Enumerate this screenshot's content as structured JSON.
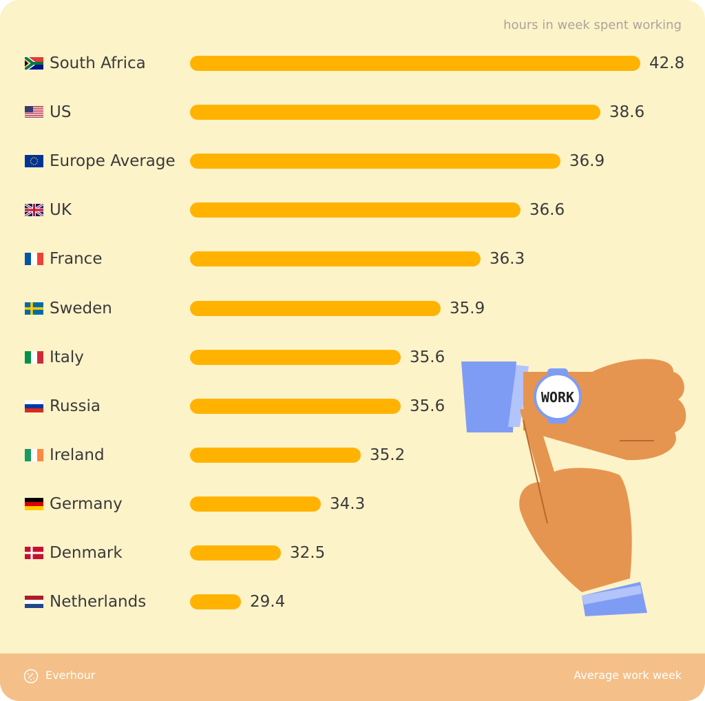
{
  "chart_data": {
    "type": "bar",
    "orientation": "horizontal",
    "unit_label": "hours in week spent working",
    "categories": [
      "South Africa",
      "US",
      "Europe Average",
      "UK",
      "France",
      "Sweden",
      "Italy",
      "Russia",
      "Ireland",
      "Germany",
      "Denmark",
      "Netherlands"
    ],
    "flags": [
      "za",
      "us",
      "eu",
      "gb",
      "fr",
      "se",
      "it",
      "ru",
      "ie",
      "de",
      "dk",
      "nl"
    ],
    "values": [
      42.8,
      38.6,
      36.9,
      36.6,
      36.3,
      35.9,
      35.6,
      35.6,
      35.2,
      34.3,
      32.5,
      29.4
    ],
    "bar_color": "#ffb300",
    "grid": false
  },
  "footer": {
    "brand": "Everhour",
    "title": "Average work week"
  },
  "illustration": {
    "watch_text": "WORK"
  },
  "colors": {
    "background": "#fdf3c9",
    "footer": "#f4bf88",
    "skin": "#e59550",
    "sleeve": "#7f9cf5"
  }
}
